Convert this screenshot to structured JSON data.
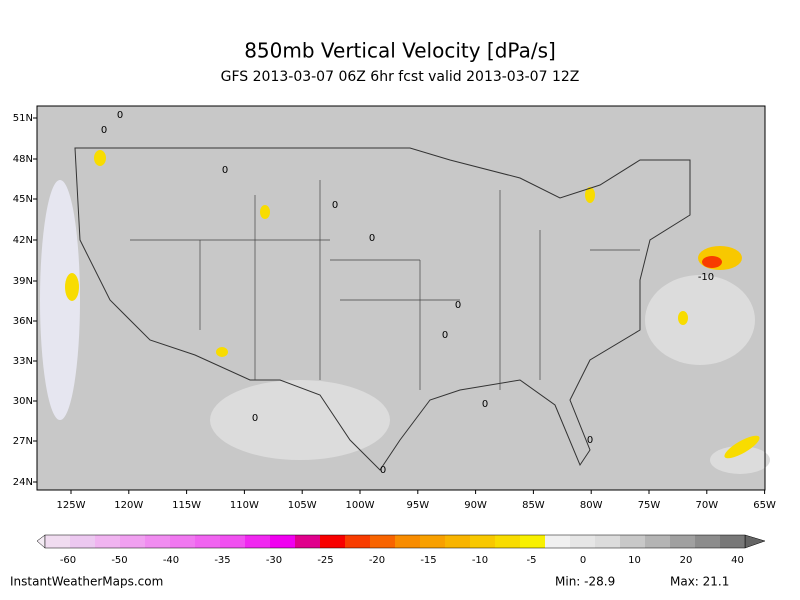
{
  "header": {
    "title": "850mb Vertical Velocity [dPa/s]",
    "subtitle": "GFS 2013-03-07 06Z 6hr fcst valid 2013-03-07 12Z"
  },
  "map": {
    "lat_labels": [
      "51N",
      "48N",
      "45N",
      "42N",
      "39N",
      "36N",
      "33N",
      "30N",
      "27N",
      "24N"
    ],
    "lon_labels": [
      "125W",
      "120W",
      "115W",
      "110W",
      "105W",
      "100W",
      "95W",
      "90W",
      "85W",
      "80W",
      "75W",
      "70W",
      "65W"
    ],
    "contour_labels": [
      "0",
      "0",
      "0",
      "0",
      "0",
      "0",
      "0",
      "0",
      "-10",
      "0",
      "0",
      "0"
    ]
  },
  "colorbar": {
    "labels": [
      "-60",
      "-50",
      "-40",
      "-35",
      "-30",
      "-25",
      "-20",
      "-15",
      "-10",
      "-5",
      "0",
      "10",
      "20",
      "40"
    ]
  },
  "footer": {
    "site": "InstantWeatherMaps.com",
    "min": "Min: -28.9",
    "max": "Max: 21.1"
  }
}
